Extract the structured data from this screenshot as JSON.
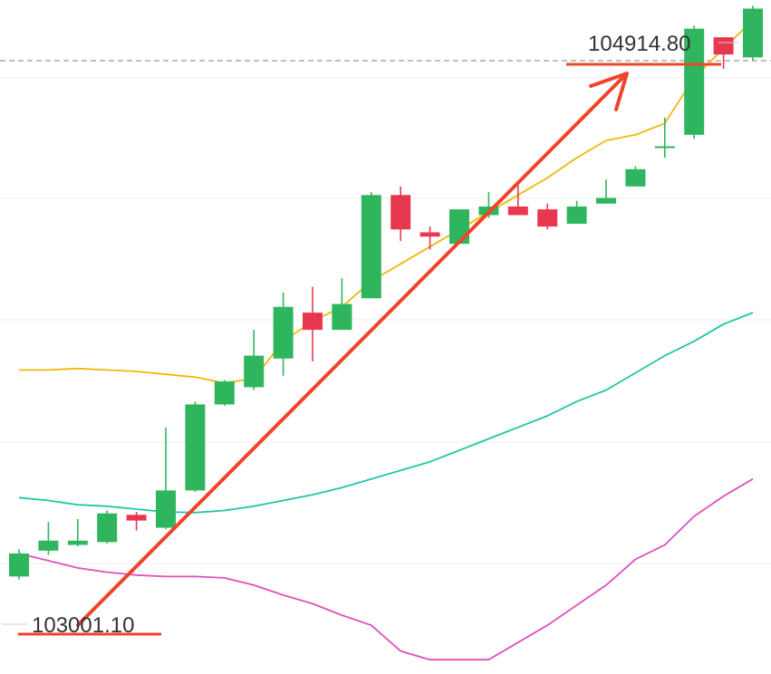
{
  "chart_data": {
    "type": "candlestick",
    "high_label": "104914.80",
    "low_label": "103001.10",
    "ylim": [
      102700,
      105050
    ],
    "grid": true,
    "colors": {
      "up": "#2fb55d",
      "down": "#e8384f",
      "ma_short": "#f0b90b",
      "ma_mid": "#1fc7a4",
      "ma_long": "#e04fbd",
      "annotation": "#f0442a",
      "grid": "#eeeeee",
      "last_price_line": "#999999"
    },
    "candles": [
      {
        "open": 103040,
        "close": 103120,
        "high": 103135,
        "low": 103030
      },
      {
        "open": 103130,
        "close": 103165,
        "high": 103230,
        "low": 103115
      },
      {
        "open": 103150,
        "close": 103165,
        "high": 103240,
        "low": 103145
      },
      {
        "open": 103160,
        "close": 103260,
        "high": 103270,
        "low": 103155
      },
      {
        "open": 103255,
        "close": 103235,
        "high": 103265,
        "low": 103200
      },
      {
        "open": 103210,
        "close": 103340,
        "high": 103560,
        "low": 103205
      },
      {
        "open": 103340,
        "close": 103640,
        "high": 103650,
        "low": 103335
      },
      {
        "open": 103640,
        "close": 103720,
        "high": 103725,
        "low": 103635
      },
      {
        "open": 103700,
        "close": 103810,
        "high": 103900,
        "low": 103690
      },
      {
        "open": 103800,
        "close": 103980,
        "high": 104030,
        "low": 103740
      },
      {
        "open": 103960,
        "close": 103900,
        "high": 104050,
        "low": 103790
      },
      {
        "open": 103900,
        "close": 103990,
        "high": 104080,
        "low": 103900
      },
      {
        "open": 104010,
        "close": 104370,
        "high": 104380,
        "low": 104010
      },
      {
        "open": 104370,
        "close": 104250,
        "high": 104400,
        "low": 104210
      },
      {
        "open": 104240,
        "close": 104225,
        "high": 104260,
        "low": 104180
      },
      {
        "open": 104200,
        "close": 104320,
        "high": 104320,
        "low": 104200
      },
      {
        "open": 104300,
        "close": 104330,
        "high": 104380,
        "low": 104290
      },
      {
        "open": 104330,
        "close": 104300,
        "high": 104405,
        "low": 104300
      },
      {
        "open": 104320,
        "close": 104260,
        "high": 104340,
        "low": 104250
      },
      {
        "open": 104270,
        "close": 104330,
        "high": 104350,
        "low": 104270
      },
      {
        "open": 104340,
        "close": 104360,
        "high": 104425,
        "low": 104340
      },
      {
        "open": 104400,
        "close": 104460,
        "high": 104470,
        "low": 104400
      },
      {
        "open": 104540,
        "close": 104540,
        "high": 104640,
        "low": 104500
      },
      {
        "open": 104580,
        "close": 104950,
        "high": 104960,
        "low": 104565
      },
      {
        "open": 104920,
        "close": 104860,
        "high": 104920,
        "low": 104810
      },
      {
        "open": 104850,
        "close": 105020,
        "high": 105030,
        "low": 104840
      }
    ],
    "ma_short": [
      103760,
      103760,
      103765,
      103760,
      103755,
      103745,
      103735,
      103715,
      103730,
      103860,
      103930,
      103980,
      104070,
      104130,
      104190,
      104250,
      104310,
      104370,
      104430,
      104500,
      104560,
      104580,
      104620,
      104780,
      104880,
      104980
    ],
    "ma_mid": [
      103315,
      103305,
      103290,
      103285,
      103275,
      103265,
      103263,
      103270,
      103285,
      103305,
      103325,
      103350,
      103380,
      103410,
      103440,
      103480,
      103520,
      103560,
      103600,
      103650,
      103690,
      103750,
      103810,
      103860,
      103920,
      103960
    ],
    "ma_long": [
      103120,
      103095,
      103070,
      103055,
      103045,
      103040,
      103040,
      103035,
      103010,
      102975,
      102945,
      102905,
      102870,
      102780,
      102750,
      102750,
      102750,
      102810,
      102870,
      102940,
      103010,
      103100,
      103150,
      103250,
      103320,
      103380
    ]
  }
}
